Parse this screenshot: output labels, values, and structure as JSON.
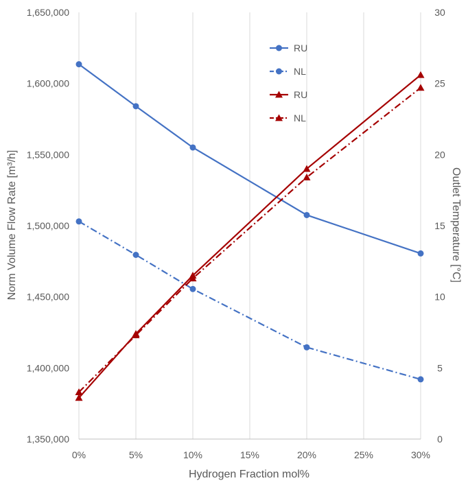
{
  "chart_data": {
    "type": "line",
    "title": "",
    "xlabel": "Hydrogen Fraction mol%",
    "ylabel_left": "Norm Volume Flow Rate [m³/h]",
    "ylabel_right": "Outlet Temperature [°C]",
    "x_ticks": [
      "0%",
      "5%",
      "10%",
      "15%",
      "20%",
      "25%",
      "30%"
    ],
    "x_range": [
      0,
      30
    ],
    "left_ticks": [
      "1,350,000",
      "1,400,000",
      "1,450,000",
      "1,500,000",
      "1,550,000",
      "1,600,000",
      "1,650,000"
    ],
    "left_range": [
      1350000,
      1650000
    ],
    "right_ticks": [
      "0",
      "5",
      "10",
      "15",
      "20",
      "25",
      "30"
    ],
    "right_range": [
      0,
      30
    ],
    "grid": "vertical",
    "legend_position": "top-center",
    "series": [
      {
        "name": "RU",
        "axis": "left",
        "color": "#4472C4",
        "dash": "solid",
        "marker": "circle",
        "x": [
          0,
          5,
          10,
          20,
          30
        ],
        "values": [
          1613500,
          1584000,
          1555000,
          1507500,
          1480500
        ]
      },
      {
        "name": "NL",
        "axis": "left",
        "color": "#4472C4",
        "dash": "dashdot",
        "marker": "circle",
        "x": [
          0,
          5,
          10,
          20,
          30
        ],
        "values": [
          1503000,
          1479500,
          1455500,
          1414500,
          1392000
        ]
      },
      {
        "name": "RU",
        "axis": "right",
        "color": "#A50000",
        "dash": "solid",
        "marker": "triangle",
        "x": [
          0,
          5,
          10,
          20,
          30
        ],
        "values": [
          2.9,
          7.4,
          11.5,
          19.0,
          25.6
        ]
      },
      {
        "name": "NL",
        "axis": "right",
        "color": "#A50000",
        "dash": "dashdot",
        "marker": "triangle",
        "x": [
          0,
          5,
          10,
          20,
          30
        ],
        "values": [
          3.3,
          7.3,
          11.3,
          18.4,
          24.7
        ]
      }
    ]
  }
}
